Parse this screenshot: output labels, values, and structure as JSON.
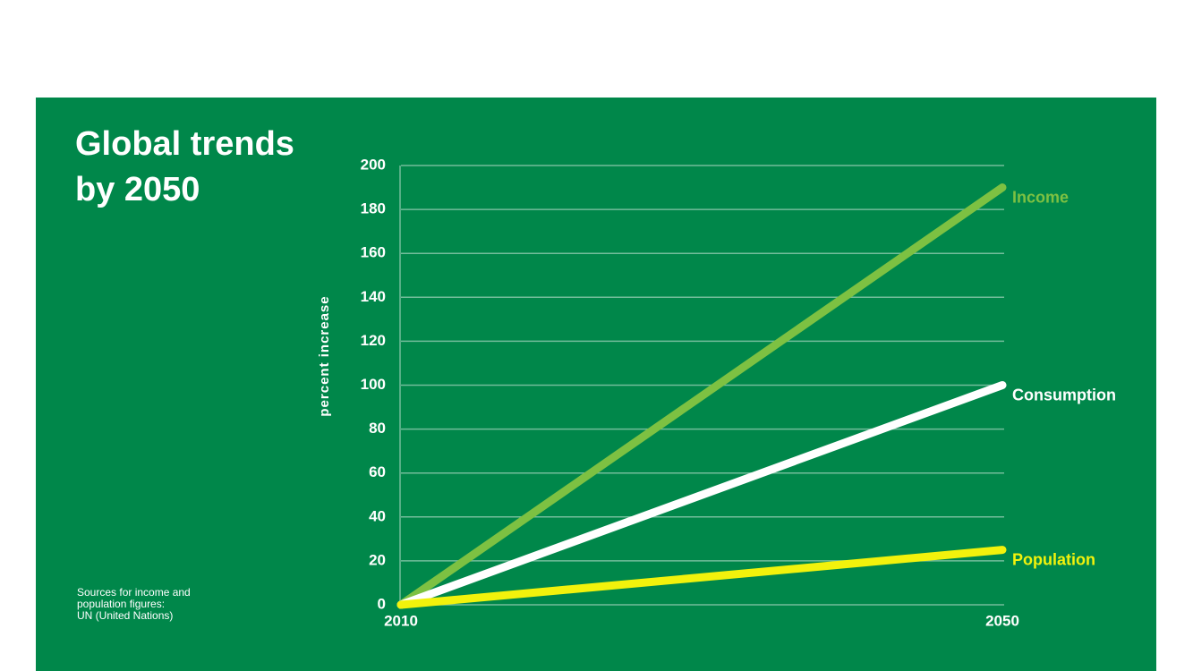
{
  "chart_data": {
    "type": "line",
    "title": "Global trends by 2050",
    "y_label": "percent increase",
    "source": [
      "Sources for income and",
      "population figures:",
      "UN (United Nations)"
    ],
    "x": [
      2010,
      2050
    ],
    "xlim": [
      2010,
      2050
    ],
    "xticks": [
      2010,
      2050
    ],
    "ylim": [
      0,
      200
    ],
    "yticks": [
      0,
      20,
      40,
      60,
      80,
      100,
      120,
      140,
      160,
      180,
      200
    ],
    "grid": true,
    "series": [
      {
        "name": "Income",
        "color": "#7dc142",
        "values": [
          0,
          190
        ]
      },
      {
        "name": "Consumption",
        "color": "#ffffff",
        "values": [
          0,
          100
        ]
      },
      {
        "name": "Population",
        "color": "#f2f20c",
        "values": [
          0,
          25
        ]
      }
    ]
  }
}
